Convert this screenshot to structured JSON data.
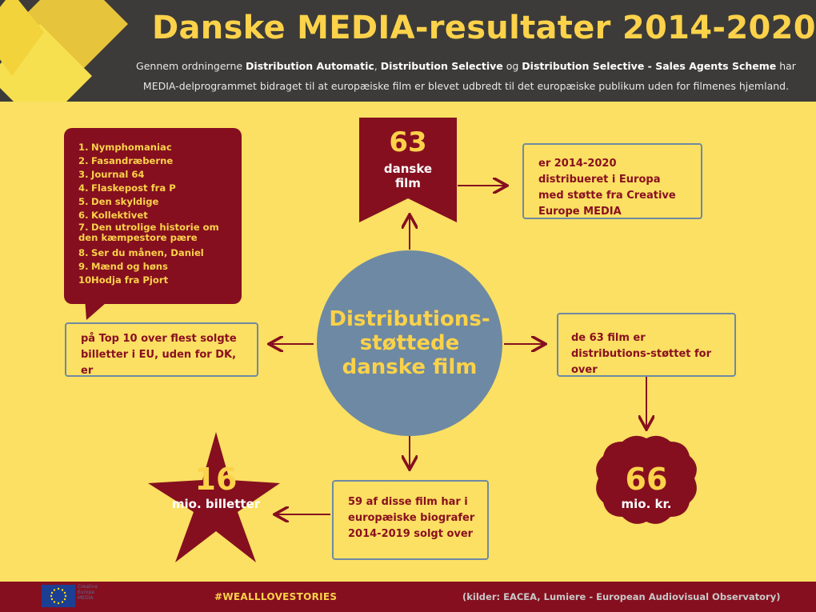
{
  "header": {
    "title": "Danske MEDIA-resultater 2014-2020",
    "subtitle_pre": "Gennem ordningerne ",
    "scheme_1": "Distribution Automatic",
    "comma": ", ",
    "scheme_2": "Distribution Selective",
    "og": " og ",
    "scheme_3": "Distribution Selective - Sales Agents Scheme",
    "subtitle_post": " har",
    "subtitle_line2": "MEDIA-delprogrammet bidraget til at europæiske film er blevet udbredt til det europæiske publikum uden for filmenes hjemland."
  },
  "center": {
    "label": "Distributions-\nstøttede\ndanske film"
  },
  "banner": {
    "number": "63",
    "label_1": "danske",
    "label_2": "film"
  },
  "box_top_right": "er 2014-2020 distribueret i Europa med støtte fra Creative Europe MEDIA",
  "box_right": "de 63 film er distributions-støttet for over",
  "seal": {
    "number": "66",
    "unit": "mio. kr."
  },
  "box_bottom": "59 af disse film har i europæiske biografer 2014-2019 solgt over",
  "star": {
    "number": "16",
    "unit": "mio. billetter"
  },
  "box_left": "på Top 10 over flest solgte billetter i EU, uden for DK, er",
  "top10": [
    {
      "n": "1.",
      "title": "Nymphomaniac"
    },
    {
      "n": "2.",
      "title": "Fasandræberne"
    },
    {
      "n": "3.",
      "title": "Journal 64"
    },
    {
      "n": "4.",
      "title": "Flaskepost fra P"
    },
    {
      "n": "5.",
      "title": "Den skyldige"
    },
    {
      "n": "6.",
      "title": "Kollektivet"
    },
    {
      "n": "7.",
      "title": "Den utrolige historie om den kæmpestore pære"
    },
    {
      "n": "8.",
      "title": "Ser du månen, Daniel"
    },
    {
      "n": "9.",
      "title": "Mænd og høns"
    },
    {
      "n": "10.",
      "title": "Hodja fra Pjort"
    }
  ],
  "footer": {
    "hashtag": "#WEALLLOVESTORIES",
    "sources": "(kilder: EACEA, Lumiere - European Audiovisual Observatory)",
    "eu_logo_text": "Creative Europe MEDIA"
  },
  "colors": {
    "background": "#fbe063",
    "dark_red": "#850f1f",
    "slate": "#6e89a3",
    "header": "#3c3b39",
    "gold": "#fbd24a"
  }
}
